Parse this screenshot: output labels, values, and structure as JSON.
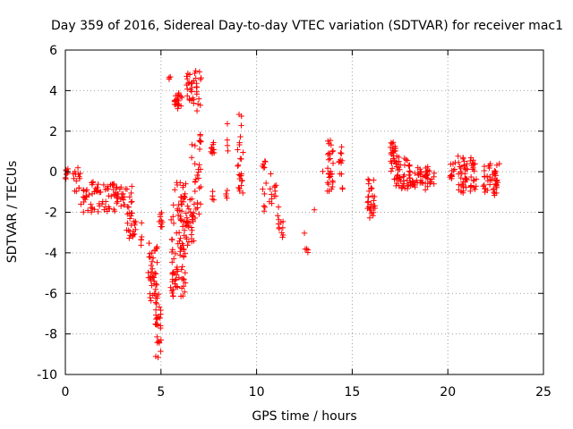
{
  "chart_data": {
    "type": "scatter",
    "title": "Day 359 of 2016, Sidereal Day-to-day VTEC variation (SDTVAR) for receiver mac1",
    "xlabel": "GPS time / hours",
    "ylabel": "SDTVAR / TECUs",
    "xlim": [
      0,
      25
    ],
    "ylim": [
      -10,
      6
    ],
    "xticks": [
      "0",
      "5",
      "10",
      "15",
      "20",
      "25"
    ],
    "yticks": [
      "-10",
      "-8",
      "-6",
      "-4",
      "-2",
      "0",
      "2",
      "4",
      "6"
    ],
    "grid": true,
    "marker": "plus",
    "color": "#ff0000",
    "clusters": [
      {
        "x0": 0.0,
        "x1": 0.15,
        "y0": -0.5,
        "y1": 0.4,
        "n": 8
      },
      {
        "x0": 0.4,
        "x1": 0.8,
        "y0": -1.0,
        "y1": 0.2,
        "n": 14
      },
      {
        "x0": 0.8,
        "x1": 1.6,
        "y0": -2.0,
        "y1": -0.5,
        "n": 26
      },
      {
        "x0": 1.6,
        "x1": 2.6,
        "y0": -2.0,
        "y1": -0.6,
        "n": 36
      },
      {
        "x0": 2.6,
        "x1": 3.5,
        "y0": -1.8,
        "y1": -0.7,
        "n": 30
      },
      {
        "x0": 3.2,
        "x1": 3.7,
        "y0": -3.3,
        "y1": -2.0,
        "n": 24
      },
      {
        "x0": 3.9,
        "x1": 4.0,
        "y0": -3.7,
        "y1": -2.5,
        "n": 5
      },
      {
        "x0": 4.3,
        "x1": 4.8,
        "y0": -6.5,
        "y1": -3.5,
        "n": 40
      },
      {
        "x0": 4.7,
        "x1": 5.0,
        "y0": -9.3,
        "y1": -6.0,
        "n": 30
      },
      {
        "x0": 4.8,
        "x1": 5.1,
        "y0": -3.0,
        "y1": -2.0,
        "n": 10
      },
      {
        "x0": 5.4,
        "x1": 5.6,
        "y0": 4.5,
        "y1": 4.8,
        "n": 3
      },
      {
        "x0": 5.5,
        "x1": 6.3,
        "y0": -6.3,
        "y1": -3.5,
        "n": 50
      },
      {
        "x0": 5.5,
        "x1": 6.3,
        "y0": -3.5,
        "y1": -0.5,
        "n": 30
      },
      {
        "x0": 5.7,
        "x1": 6.1,
        "y0": 3.0,
        "y1": 3.9,
        "n": 20
      },
      {
        "x0": 6.0,
        "x1": 6.8,
        "y0": -4.0,
        "y1": -0.5,
        "n": 44
      },
      {
        "x0": 6.3,
        "x1": 7.1,
        "y0": 3.0,
        "y1": 5.0,
        "n": 36
      },
      {
        "x0": 6.6,
        "x1": 7.1,
        "y0": -2.5,
        "y1": 2.0,
        "n": 26
      },
      {
        "x0": 7.0,
        "x1": 7.1,
        "y0": 1.0,
        "y1": 2.0,
        "n": 5
      },
      {
        "x0": 7.6,
        "x1": 7.8,
        "y0": 0.7,
        "y1": 1.8,
        "n": 10
      },
      {
        "x0": 7.6,
        "x1": 7.8,
        "y0": -1.4,
        "y1": -0.9,
        "n": 4
      },
      {
        "x0": 8.4,
        "x1": 8.5,
        "y0": 1.0,
        "y1": 2.4,
        "n": 4
      },
      {
        "x0": 8.4,
        "x1": 8.5,
        "y0": -1.5,
        "y1": -0.8,
        "n": 4
      },
      {
        "x0": 9.0,
        "x1": 9.3,
        "y0": -1.2,
        "y1": 3.0,
        "n": 24
      },
      {
        "x0": 10.3,
        "x1": 10.5,
        "y0": -2.0,
        "y1": 0.8,
        "n": 12
      },
      {
        "x0": 10.6,
        "x1": 10.8,
        "y0": -2.1,
        "y1": 0.3,
        "n": 6
      },
      {
        "x0": 10.9,
        "x1": 11.1,
        "y0": -1.3,
        "y1": -0.5,
        "n": 6
      },
      {
        "x0": 11.1,
        "x1": 11.4,
        "y0": -3.3,
        "y1": -1.7,
        "n": 12
      },
      {
        "x0": 12.5,
        "x1": 12.7,
        "y0": -4.1,
        "y1": -3.8,
        "n": 4
      },
      {
        "x0": 12.5,
        "x1": 12.6,
        "y0": -3.1,
        "y1": -3.0,
        "n": 1
      },
      {
        "x0": 13.0,
        "x1": 13.1,
        "y0": -1.9,
        "y1": -1.8,
        "n": 1
      },
      {
        "x0": 13.4,
        "x1": 13.5,
        "y0": 0.0,
        "y1": 0.1,
        "n": 1
      },
      {
        "x0": 13.7,
        "x1": 14.0,
        "y0": -1.0,
        "y1": 1.8,
        "n": 30
      },
      {
        "x0": 14.3,
        "x1": 14.5,
        "y0": -0.9,
        "y1": 1.4,
        "n": 12
      },
      {
        "x0": 15.8,
        "x1": 16.2,
        "y0": -2.3,
        "y1": -0.3,
        "n": 30
      },
      {
        "x0": 17.0,
        "x1": 17.3,
        "y0": 0.0,
        "y1": 1.5,
        "n": 20
      },
      {
        "x0": 17.2,
        "x1": 18.0,
        "y0": -1.0,
        "y1": 0.9,
        "n": 46
      },
      {
        "x0": 18.0,
        "x1": 18.7,
        "y0": -0.8,
        "y1": 0.4,
        "n": 30
      },
      {
        "x0": 18.8,
        "x1": 19.3,
        "y0": -1.0,
        "y1": 0.3,
        "n": 24
      },
      {
        "x0": 20.1,
        "x1": 20.4,
        "y0": -0.4,
        "y1": 0.6,
        "n": 12
      },
      {
        "x0": 20.5,
        "x1": 21.5,
        "y0": -1.1,
        "y1": 0.8,
        "n": 56
      },
      {
        "x0": 21.8,
        "x1": 22.7,
        "y0": -1.2,
        "y1": 0.4,
        "n": 44
      }
    ]
  }
}
